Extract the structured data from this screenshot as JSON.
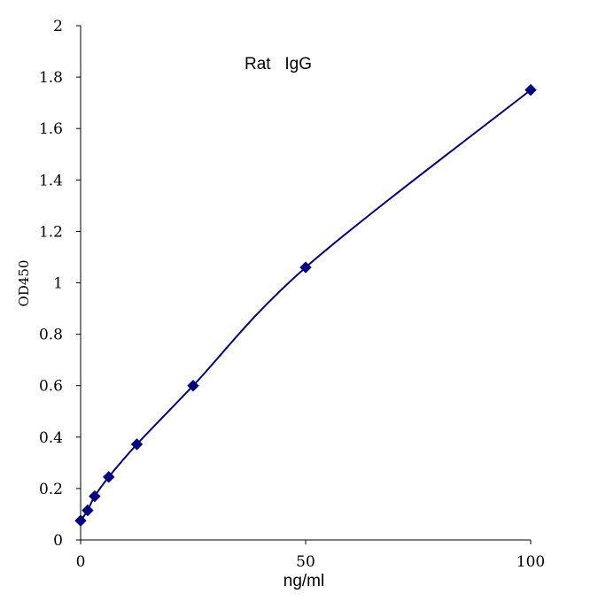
{
  "chart_data": {
    "type": "scatter",
    "title": "Rat   IgG",
    "xlabel": "ng/ml",
    "ylabel": "OD450",
    "xlim": [
      0,
      100
    ],
    "ylim": [
      0,
      2
    ],
    "x_ticks": [
      "0",
      "50",
      "100"
    ],
    "y_ticks": [
      "0",
      "0.2",
      "0.4",
      "0.6",
      "0.8",
      "1",
      "1.2",
      "1.4",
      "1.6",
      "1.8",
      "2"
    ],
    "grid": false,
    "legend": "none",
    "series": [
      {
        "marker": "diamond",
        "line": "smooth",
        "color": "#000080",
        "x": [
          0,
          1.5625,
          3.125,
          6.25,
          12.5,
          25,
          50,
          100
        ],
        "y": [
          0.075,
          0.115,
          0.17,
          0.245,
          0.372,
          0.6,
          1.06,
          1.75
        ]
      }
    ]
  }
}
